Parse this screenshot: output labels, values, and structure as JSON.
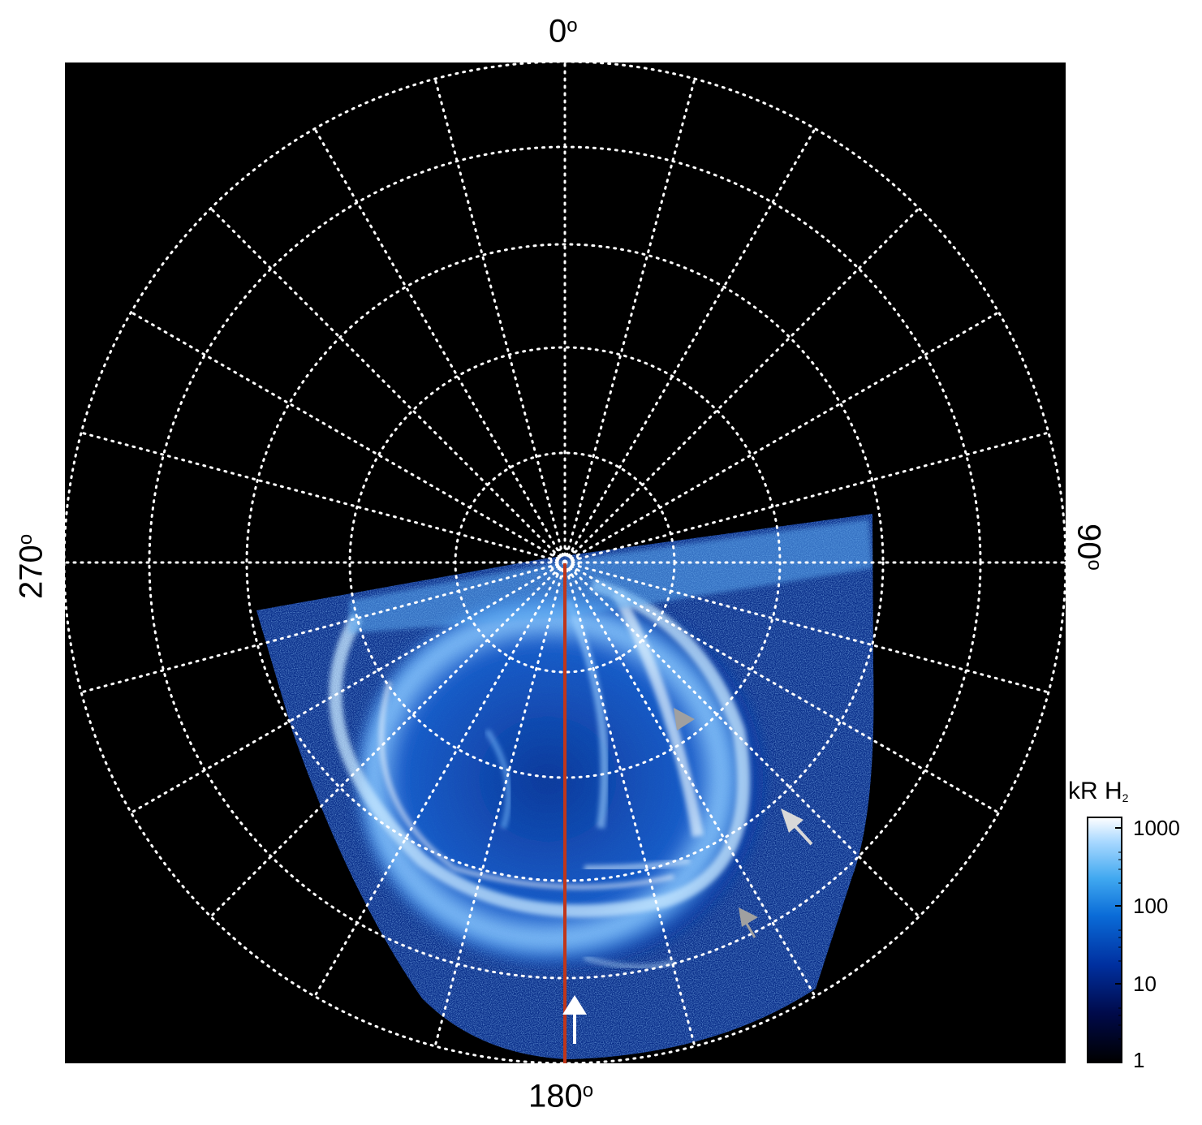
{
  "labels": {
    "top": "0",
    "bottom": "180",
    "left": "270",
    "right": "90",
    "degree_symbol": "o"
  },
  "colorbar": {
    "title_main": "kR H",
    "title_sub": "2",
    "ticks": [
      "1000",
      "100",
      "10",
      "1"
    ],
    "colors": [
      "#000000",
      "#000a4a",
      "#0030a0",
      "#0a6cd8",
      "#40a8f0",
      "#a8d8ff",
      "#ffffff"
    ]
  },
  "colors": {
    "background": "#000000",
    "grid": "#ffffff",
    "meridian_line": "#c0361a",
    "arrow_white": "#ffffff",
    "arrow_gray": "#a0a0a0"
  }
}
